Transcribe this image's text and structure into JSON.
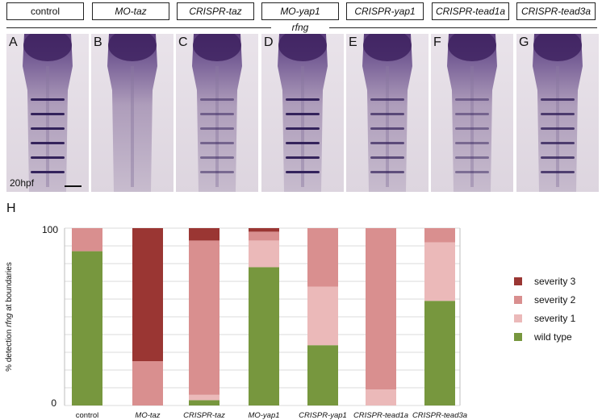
{
  "conditions": [
    {
      "label": "control",
      "italic": false
    },
    {
      "label": "MO-taz",
      "italic": true
    },
    {
      "label": "CRISPR-taz",
      "italic": true
    },
    {
      "label": "MO-yap1",
      "italic": true
    },
    {
      "label": "CRISPR-yap1",
      "italic": true
    },
    {
      "label": "CRISPR-tead1a",
      "italic": true
    },
    {
      "label": "CRISPR-tead3a",
      "italic": true
    }
  ],
  "gene_label": "rfng",
  "panels": [
    {
      "letter": "A",
      "stripe_strength": 1.0
    },
    {
      "letter": "B",
      "stripe_strength": 0.0
    },
    {
      "letter": "C",
      "stripe_strength": 0.35
    },
    {
      "letter": "D",
      "stripe_strength": 1.0
    },
    {
      "letter": "E",
      "stripe_strength": 0.6
    },
    {
      "letter": "F",
      "stripe_strength": 0.3
    },
    {
      "letter": "G",
      "stripe_strength": 0.75
    }
  ],
  "stage_label": "20hpf",
  "chart_letter": "H",
  "chart_data": {
    "type": "bar",
    "stacked": true,
    "ylabel_parts": [
      "% detection ",
      "rfng",
      " at boundaries"
    ],
    "ylim": [
      0,
      100
    ],
    "ytick_labels": [
      "0",
      "100"
    ],
    "categories": [
      "control",
      "MO-taz",
      "CRISPR-taz",
      "MO-yap1",
      "CRISPR-yap1",
      "CRISPR-tead1a",
      "CRISPR-tead3a"
    ],
    "category_italic": [
      false,
      true,
      true,
      true,
      true,
      true,
      true
    ],
    "series": [
      {
        "name": "wild type",
        "color": "#77973e",
        "values": [
          87,
          0,
          3,
          78,
          34,
          0,
          59
        ]
      },
      {
        "name": "severity 1",
        "color": "#ebb9b9",
        "values": [
          0,
          0,
          3,
          15,
          33,
          9,
          33
        ]
      },
      {
        "name": "severity 2",
        "color": "#d98f8f",
        "values": [
          13,
          25,
          87,
          5,
          33,
          91,
          8
        ]
      },
      {
        "name": "severity 3",
        "color": "#9a3633",
        "values": [
          0,
          75,
          7,
          2,
          0,
          0,
          0
        ]
      }
    ],
    "legend_position": "right",
    "grid": "horizontal"
  }
}
